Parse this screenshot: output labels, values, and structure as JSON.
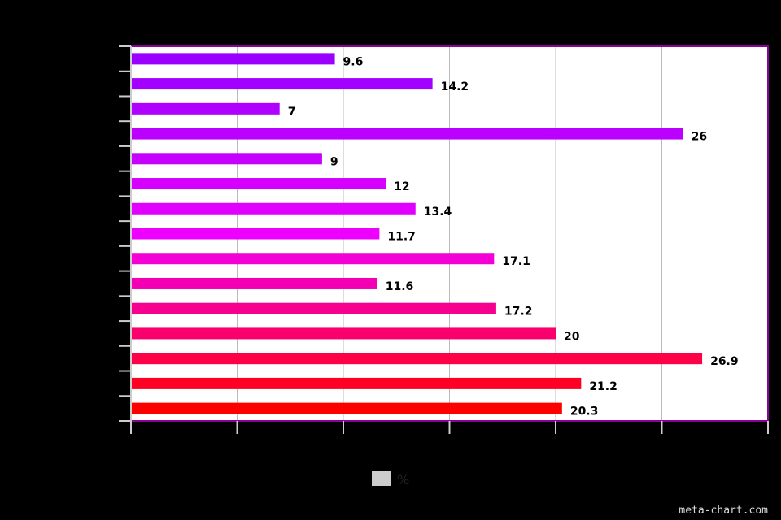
{
  "chart_data": {
    "type": "bar",
    "orientation": "horizontal",
    "categories": [
      "",
      "",
      "",
      "",
      "",
      "",
      "",
      "",
      "",
      "",
      "",
      "",
      "",
      "",
      ""
    ],
    "values": [
      9.6,
      14.2,
      7,
      26,
      9,
      12,
      13.4,
      11.7,
      17.1,
      11.6,
      17.2,
      20,
      26.9,
      21.2,
      20.3
    ],
    "value_labels": [
      "9.6",
      "14.2",
      "7",
      "26",
      "9",
      "12",
      "13.4",
      "11.7",
      "17.1",
      "11.6",
      "17.2",
      "20",
      "26.9",
      "21.2",
      "20.3"
    ],
    "bar_colors": [
      "#9900ff",
      "#a300ff",
      "#b000ff",
      "#bc00ff",
      "#c600ff",
      "#d500ff",
      "#e100ff",
      "#ee00ff",
      "#f200d6",
      "#f400b4",
      "#f70090",
      "#fa006c",
      "#fc0048",
      "#fe0024",
      "#ff0000"
    ],
    "xlim": [
      0,
      30
    ],
    "x_grid_step": 5,
    "grid": true,
    "legend": {
      "placement": "bottom-center",
      "label": "%",
      "swatch_color": "#cccccc"
    },
    "colors": {
      "background": "#000000",
      "plot_border": "#8a0099",
      "grid": "#bbbbbb",
      "axis": "#cccccc"
    }
  },
  "watermark": "meta-chart.com"
}
